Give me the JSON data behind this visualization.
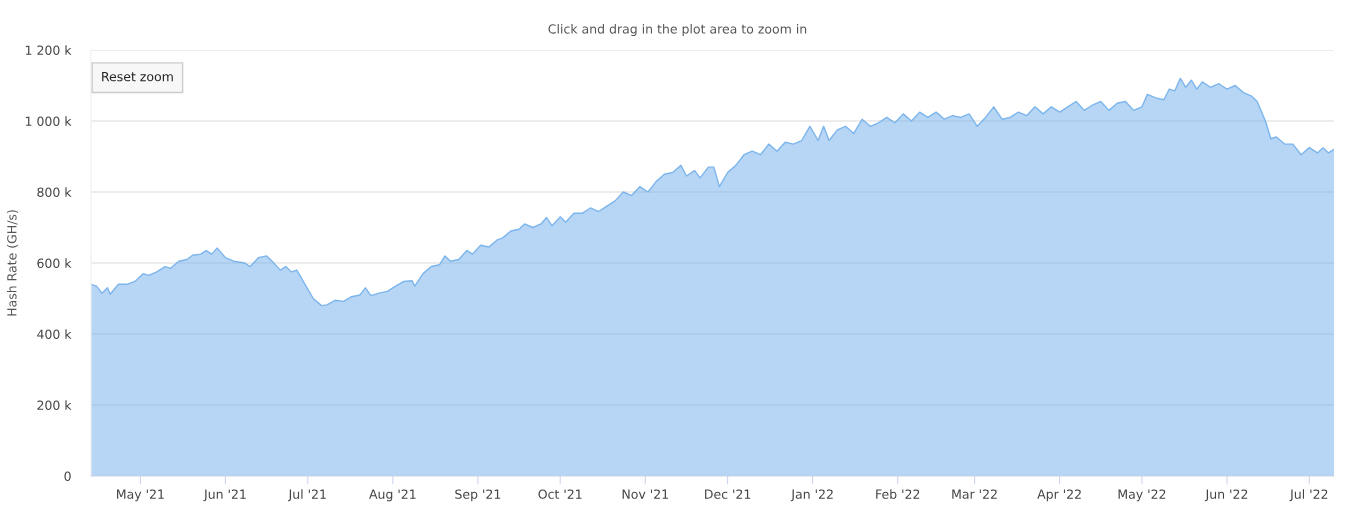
{
  "chart_data": {
    "type": "area",
    "subtitle": "Click and drag in the plot area to zoom in",
    "ylabel": "Hash Rate (GH/s)",
    "annotations": [
      "Reset zoom"
    ],
    "x": [
      "2021-04-13",
      "2021-04-15",
      "2021-04-17",
      "2021-04-19",
      "2021-04-20",
      "2021-04-23",
      "2021-04-26",
      "2021-04-29",
      "2021-05-02",
      "2021-05-04",
      "2021-05-07",
      "2021-05-10",
      "2021-05-12",
      "2021-05-15",
      "2021-05-18",
      "2021-05-20",
      "2021-05-23",
      "2021-05-25",
      "2021-05-27",
      "2021-05-29",
      "2021-06-01",
      "2021-06-04",
      "2021-06-08",
      "2021-06-10",
      "2021-06-13",
      "2021-06-16",
      "2021-06-18",
      "2021-06-21",
      "2021-06-23",
      "2021-06-25",
      "2021-06-27",
      "2021-06-30",
      "2021-07-03",
      "2021-07-06",
      "2021-07-08",
      "2021-07-11",
      "2021-07-14",
      "2021-07-17",
      "2021-07-20",
      "2021-07-22",
      "2021-07-24",
      "2021-07-27",
      "2021-07-30",
      "2021-08-02",
      "2021-08-05",
      "2021-08-08",
      "2021-08-09",
      "2021-08-12",
      "2021-08-15",
      "2021-08-18",
      "2021-08-20",
      "2021-08-22",
      "2021-08-25",
      "2021-08-28",
      "2021-08-30",
      "2021-09-02",
      "2021-09-05",
      "2021-09-08",
      "2021-09-10",
      "2021-09-13",
      "2021-09-16",
      "2021-09-18",
      "2021-09-21",
      "2021-09-24",
      "2021-09-26",
      "2021-09-28",
      "2021-10-01",
      "2021-10-03",
      "2021-10-06",
      "2021-10-09",
      "2021-10-12",
      "2021-10-15",
      "2021-10-18",
      "2021-10-21",
      "2021-10-24",
      "2021-10-27",
      "2021-10-30",
      "2021-11-02",
      "2021-11-05",
      "2021-11-08",
      "2021-11-11",
      "2021-11-14",
      "2021-11-16",
      "2021-11-19",
      "2021-11-21",
      "2021-11-24",
      "2021-11-26",
      "2021-11-28",
      "2021-12-01",
      "2021-12-04",
      "2021-12-07",
      "2021-12-10",
      "2021-12-13",
      "2021-12-16",
      "2021-12-19",
      "2021-12-22",
      "2021-12-25",
      "2021-12-28",
      "2021-12-31",
      "2022-01-03",
      "2022-01-05",
      "2022-01-07",
      "2022-01-10",
      "2022-01-13",
      "2022-01-16",
      "2022-01-19",
      "2022-01-22",
      "2022-01-25",
      "2022-01-28",
      "2022-01-31",
      "2022-02-03",
      "2022-02-06",
      "2022-02-09",
      "2022-02-12",
      "2022-02-15",
      "2022-02-18",
      "2022-02-21",
      "2022-02-24",
      "2022-02-27",
      "2022-03-02",
      "2022-03-05",
      "2022-03-08",
      "2022-03-11",
      "2022-03-14",
      "2022-03-17",
      "2022-03-20",
      "2022-03-23",
      "2022-03-26",
      "2022-03-29",
      "2022-04-01",
      "2022-04-04",
      "2022-04-07",
      "2022-04-10",
      "2022-04-13",
      "2022-04-16",
      "2022-04-19",
      "2022-04-22",
      "2022-04-25",
      "2022-04-28",
      "2022-05-01",
      "2022-05-03",
      "2022-05-06",
      "2022-05-09",
      "2022-05-11",
      "2022-05-13",
      "2022-05-15",
      "2022-05-17",
      "2022-05-19",
      "2022-05-21",
      "2022-05-23",
      "2022-05-26",
      "2022-05-29",
      "2022-06-01",
      "2022-06-04",
      "2022-06-07",
      "2022-06-10",
      "2022-06-12",
      "2022-06-15",
      "2022-06-17",
      "2022-06-19",
      "2022-06-22",
      "2022-06-25",
      "2022-06-28",
      "2022-07-01",
      "2022-07-04",
      "2022-07-06",
      "2022-07-08",
      "2022-07-10"
    ],
    "series": [
      {
        "color": "#7cb5ec",
        "values": [
          540000,
          535000,
          515000,
          530000,
          512000,
          540000,
          540000,
          548000,
          570000,
          565000,
          575000,
          590000,
          585000,
          605000,
          610000,
          622000,
          625000,
          635000,
          625000,
          642000,
          615000,
          605000,
          600000,
          590000,
          615000,
          620000,
          605000,
          580000,
          590000,
          575000,
          580000,
          540000,
          500000,
          480000,
          482000,
          495000,
          492000,
          505000,
          510000,
          530000,
          508000,
          515000,
          520000,
          535000,
          548000,
          550000,
          535000,
          570000,
          590000,
          595000,
          620000,
          605000,
          610000,
          635000,
          625000,
          650000,
          645000,
          665000,
          670000,
          690000,
          695000,
          710000,
          700000,
          710000,
          728000,
          705000,
          730000,
          715000,
          740000,
          740000,
          755000,
          745000,
          760000,
          775000,
          800000,
          790000,
          815000,
          800000,
          830000,
          850000,
          855000,
          875000,
          845000,
          860000,
          840000,
          870000,
          870000,
          815000,
          855000,
          875000,
          905000,
          915000,
          905000,
          935000,
          915000,
          940000,
          935000,
          945000,
          985000,
          945000,
          985000,
          945000,
          975000,
          985000,
          965000,
          1005000,
          985000,
          995000,
          1010000,
          995000,
          1020000,
          1000000,
          1025000,
          1010000,
          1025000,
          1005000,
          1015000,
          1010000,
          1020000,
          985000,
          1010000,
          1040000,
          1005000,
          1010000,
          1025000,
          1015000,
          1040000,
          1020000,
          1040000,
          1025000,
          1040000,
          1055000,
          1030000,
          1045000,
          1055000,
          1030000,
          1050000,
          1055000,
          1030000,
          1040000,
          1075000,
          1065000,
          1060000,
          1090000,
          1085000,
          1120000,
          1095000,
          1115000,
          1090000,
          1110000,
          1095000,
          1105000,
          1090000,
          1100000,
          1080000,
          1070000,
          1055000,
          1000000,
          950000,
          955000,
          935000,
          935000,
          905000,
          925000,
          910000,
          925000,
          910000,
          920000
        ]
      }
    ],
    "xlim": [
      "2021-04-13",
      "2022-07-10"
    ],
    "xticks": [
      {
        "value": "2021-05-01",
        "label": "May '21"
      },
      {
        "value": "2021-06-01",
        "label": "Jun '21"
      },
      {
        "value": "2021-07-01",
        "label": "Jul '21"
      },
      {
        "value": "2021-08-01",
        "label": "Aug '21"
      },
      {
        "value": "2021-09-01",
        "label": "Sep '21"
      },
      {
        "value": "2021-10-01",
        "label": "Oct '21"
      },
      {
        "value": "2021-11-01",
        "label": "Nov '21"
      },
      {
        "value": "2021-12-01",
        "label": "Dec '21"
      },
      {
        "value": "2022-01-01",
        "label": "Jan '22"
      },
      {
        "value": "2022-02-01",
        "label": "Feb '22"
      },
      {
        "value": "2022-03-01",
        "label": "Mar '22"
      },
      {
        "value": "2022-04-01",
        "label": "Apr '22"
      },
      {
        "value": "2022-05-01",
        "label": "May '22"
      },
      {
        "value": "2022-06-01",
        "label": "Jun '22"
      },
      {
        "value": "2022-07-01",
        "label": "Jul '22"
      }
    ],
    "ylim": [
      0,
      1200000
    ],
    "yticks": [
      0,
      {
        "value": 200000,
        "label": "200 k"
      },
      {
        "value": 400000,
        "label": "400 k"
      },
      {
        "value": 600000,
        "label": "600 k"
      },
      {
        "value": 800000,
        "label": "800 k"
      },
      {
        "value": 1000000,
        "label": "1 000 k"
      },
      {
        "value": 1200000,
        "label": "1 200 k"
      }
    ],
    "grid": "y"
  }
}
